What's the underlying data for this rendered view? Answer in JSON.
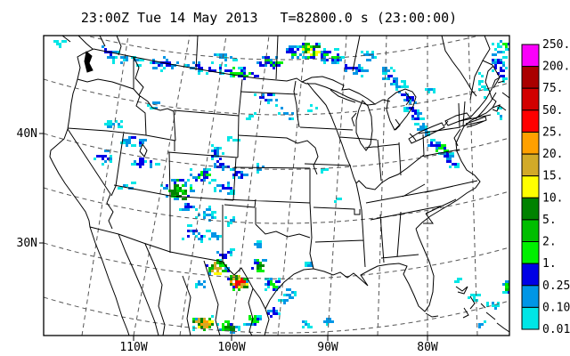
{
  "title": {
    "time_label": "23:00Z Tue 14 May 2013",
    "t_label": "T=82800.0 s (23:00:00)"
  },
  "axes": {
    "lat_labels": [
      "40N",
      "30N"
    ],
    "lon_labels": [
      "110W",
      "100W",
      "90W",
      "80W"
    ]
  },
  "legend": {
    "values": [
      "250.",
      "200.",
      "75.",
      "50.",
      "25.",
      "20.",
      "15.",
      "10.",
      "5.",
      "2.",
      "1.",
      "0.25",
      "0.10",
      "0.01"
    ],
    "colors": [
      "#FA00FA",
      "#AA0000",
      "#D20000",
      "#FF0000",
      "#FFA000",
      "#D2AA28",
      "#FFFF00",
      "#008200",
      "#00BE00",
      "#00F000",
      "#0000E6",
      "#0096E6",
      "#00E6E6"
    ]
  },
  "colors": {
    "background": "#FFFFFF",
    "frame": "#000000",
    "map_lines": "#000000",
    "graticule": "#555555",
    "text": "#000000"
  }
}
